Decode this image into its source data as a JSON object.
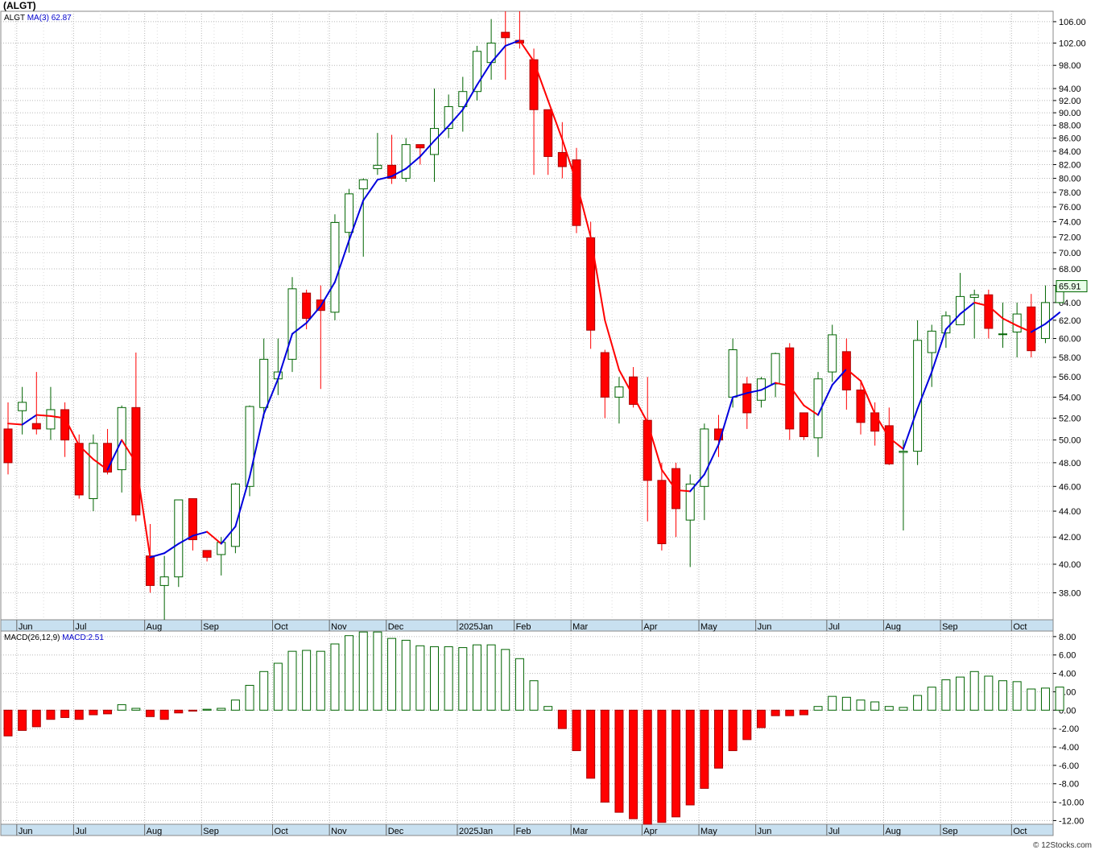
{
  "title": "(ALGT)",
  "footer": "© 12Stocks.com",
  "price_legend": {
    "symbol": "ALGT",
    "ma_label": "MA(3)",
    "ma_value": "62.87"
  },
  "macd_legend": {
    "label": "MACD(26,12,9)",
    "value": "MACD:2.51"
  },
  "last_price_label": "65.91",
  "colors": {
    "up": "#006400",
    "down": "#ff0000",
    "ma_up": "#0000dd",
    "ma_down": "#ff0000",
    "grid": "#b8b8b8",
    "axis_bar": "#c8e0f0"
  },
  "chart_data": [
    {
      "type": "candlestick",
      "scale": "log",
      "ylim": [
        36.2,
        108
      ],
      "ticks": [
        38,
        40,
        42,
        44,
        46,
        48,
        50,
        52,
        54,
        56,
        58,
        60,
        62,
        64,
        66,
        68,
        70,
        72,
        74,
        76,
        78,
        80,
        82,
        84,
        86,
        88,
        90,
        92,
        94,
        98,
        102,
        106
      ],
      "months": [
        "Jun",
        "Jul",
        "Aug",
        "Sep",
        "Oct",
        "Nov",
        "Dec",
        "2025Jan",
        "Feb",
        "Mar",
        "Apr",
        "May",
        "Jun",
        "Jul",
        "Aug",
        "Sep",
        "Oct"
      ],
      "month_start_index": [
        1,
        5,
        10,
        14,
        19,
        23,
        27,
        32,
        36,
        40,
        45,
        49,
        53,
        58,
        62,
        66,
        71
      ],
      "candles": [
        [
          51.0,
          53.5,
          47.0,
          48.0
        ],
        [
          52.7,
          55.0,
          50.5,
          53.5
        ],
        [
          51.5,
          56.5,
          50.5,
          51.0
        ],
        [
          51.0,
          55.0,
          50.0,
          52.8
        ],
        [
          52.8,
          53.5,
          48.5,
          50.0
        ],
        [
          49.7,
          50.5,
          45.0,
          45.3
        ],
        [
          45.0,
          50.5,
          44.0,
          49.7
        ],
        [
          49.7,
          51.0,
          47.0,
          47.2
        ],
        [
          47.4,
          53.2,
          45.5,
          53.0
        ],
        [
          53.0,
          58.5,
          43.2,
          43.7
        ],
        [
          40.6,
          43.0,
          38.0,
          38.5
        ],
        [
          38.5,
          40.6,
          36.2,
          39.1
        ],
        [
          39.1,
          44.9,
          38.4,
          44.9
        ],
        [
          45.0,
          45.0,
          41.0,
          41.8
        ],
        [
          41.0,
          41.0,
          40.2,
          40.5
        ],
        [
          40.7,
          42.0,
          39.2,
          41.6
        ],
        [
          41.3,
          46.3,
          40.8,
          46.2
        ],
        [
          46.0,
          53.2,
          45.2,
          53.1
        ],
        [
          53.0,
          60.0,
          52.0,
          57.8
        ],
        [
          55.8,
          60.0,
          54.2,
          56.5
        ],
        [
          57.8,
          67.0,
          56.5,
          65.6
        ],
        [
          65.1,
          65.5,
          61.0,
          62.2
        ],
        [
          64.3,
          66.0,
          54.8,
          63.1
        ],
        [
          62.9,
          75.0,
          62.0,
          73.9
        ],
        [
          72.6,
          78.5,
          70.0,
          77.8
        ],
        [
          78.5,
          80.0,
          69.5,
          79.8
        ],
        [
          81.4,
          86.8,
          80.5,
          81.9
        ],
        [
          81.9,
          86.5,
          79.2,
          80.0
        ],
        [
          80.0,
          86.0,
          79.5,
          85.0
        ],
        [
          85.0,
          85.0,
          82.0,
          84.5
        ],
        [
          83.5,
          94.0,
          79.5,
          87.5
        ],
        [
          87.5,
          93.0,
          86.0,
          91.0
        ],
        [
          91.0,
          96.0,
          87.0,
          93.5
        ],
        [
          93.5,
          101.5,
          92.0,
          100.5
        ],
        [
          98.5,
          106.5,
          95.5,
          102.0
        ],
        [
          104.0,
          108.0,
          95.5,
          103.0
        ],
        [
          102.5,
          108.0,
          101.0,
          102.0
        ],
        [
          99.0,
          101.0,
          80.5,
          90.5
        ],
        [
          90.5,
          90.5,
          80.5,
          83.2
        ],
        [
          83.8,
          88.5,
          80.0,
          81.7
        ],
        [
          82.7,
          84.5,
          72.5,
          73.5
        ],
        [
          71.9,
          74.0,
          58.9,
          60.9
        ],
        [
          58.5,
          58.8,
          52.0,
          54.0
        ],
        [
          54.0,
          56.0,
          51.5,
          55.0
        ],
        [
          56.0,
          57.0,
          53.0,
          53.3
        ],
        [
          51.8,
          56.0,
          43.2,
          46.5
        ],
        [
          46.5,
          48.0,
          41.0,
          41.5
        ],
        [
          47.5,
          48.0,
          42.0,
          44.2
        ],
        [
          43.3,
          47.0,
          39.8,
          46.2
        ],
        [
          46.0,
          51.5,
          43.3,
          51.0
        ],
        [
          51.0,
          52.3,
          48.5,
          50.0
        ],
        [
          54.0,
          60.0,
          53.0,
          58.8
        ],
        [
          55.3,
          56.0,
          51.0,
          52.5
        ],
        [
          53.7,
          56.0,
          53.0,
          55.8
        ],
        [
          55.3,
          58.5,
          54.0,
          58.4
        ],
        [
          59.0,
          59.5,
          50.0,
          51.0
        ],
        [
          52.5,
          52.5,
          50.0,
          50.3
        ],
        [
          50.2,
          56.5,
          48.5,
          55.8
        ],
        [
          56.5,
          61.5,
          55.5,
          60.4
        ],
        [
          58.6,
          60.0,
          52.8,
          54.7
        ],
        [
          54.7,
          55.5,
          50.5,
          51.6
        ],
        [
          52.5,
          53.5,
          49.5,
          50.8
        ],
        [
          51.3,
          53.0,
          47.8,
          47.9
        ],
        [
          48.9,
          50.0,
          42.5,
          49.0
        ],
        [
          49.0,
          62.0,
          47.8,
          59.8
        ],
        [
          58.5,
          61.5,
          55.0,
          60.8
        ],
        [
          60.6,
          63.0,
          59.0,
          62.5
        ],
        [
          61.5,
          67.5,
          61.5,
          64.7
        ],
        [
          64.6,
          65.5,
          60.0,
          64.9
        ],
        [
          64.9,
          65.5,
          60.0,
          61.1
        ],
        [
          60.5,
          64.0,
          59.0,
          60.5
        ],
        [
          60.7,
          64.0,
          58.0,
          62.7
        ],
        [
          63.5,
          65.0,
          58.0,
          58.7
        ],
        [
          60.0,
          66.0,
          59.5,
          64.0
        ],
        [
          64.0,
          66.5,
          63.8,
          65.91
        ]
      ],
      "ma3": [
        51.5,
        51.4,
        52.3,
        52.2,
        52.0,
        49.5,
        48.3,
        47.4,
        50.0,
        48.0,
        40.5,
        40.8,
        41.5,
        42.1,
        42.4,
        41.5,
        42.8,
        46.8,
        52.4,
        55.8,
        60.5,
        61.7,
        63.6,
        66.4,
        71.6,
        76.9,
        79.8,
        80.3,
        81.4,
        83.2,
        85.6,
        87.9,
        90.5,
        94.6,
        98.5,
        101.5,
        102.5,
        98.7,
        92.0,
        85.8,
        79.4,
        72.0,
        62.0,
        56.7,
        54.1,
        51.6,
        47.4,
        45.7,
        45.6,
        47.0,
        49.6,
        54.0,
        54.4,
        54.7,
        55.4,
        55.1,
        53.2,
        52.3,
        55.2,
        56.8,
        55.6,
        52.4,
        50.2,
        49.2,
        52.9,
        56.5,
        61.0,
        62.7,
        64.0,
        63.6,
        62.2,
        61.4,
        60.7,
        61.6,
        62.87
      ]
    },
    {
      "type": "bar",
      "label": "MACD(26,12,9)",
      "ylim": [
        -12.4,
        8.6
      ],
      "ticks": [
        8,
        6,
        4,
        2,
        0,
        -2,
        -4,
        -6,
        -8,
        -10,
        -12
      ],
      "tick_labels": [
        "8.00",
        "6.00",
        "4.00",
        "2.00",
        "0.00",
        "-2.00",
        "-4.00",
        "-6.00",
        "-8.00",
        "-10.00",
        "-12.00"
      ],
      "values": [
        -2.8,
        -2.2,
        -1.8,
        -1.0,
        -0.8,
        -1.0,
        -0.5,
        -0.4,
        0.6,
        0.2,
        -0.7,
        -1.0,
        -0.3,
        -0.1,
        0.1,
        0.2,
        1.1,
        2.7,
        4.2,
        5.1,
        6.4,
        6.5,
        6.4,
        7.2,
        8.1,
        8.5,
        8.5,
        7.8,
        7.6,
        7.0,
        6.9,
        6.9,
        6.8,
        7.1,
        7.1,
        6.6,
        5.6,
        3.2,
        0.4,
        -2.0,
        -4.4,
        -7.4,
        -10.0,
        -11.1,
        -11.8,
        -12.4,
        -12.2,
        -11.6,
        -10.3,
        -8.5,
        -6.3,
        -4.4,
        -3.2,
        -1.9,
        -0.6,
        -0.6,
        -0.5,
        0.4,
        1.5,
        1.4,
        1.1,
        0.9,
        0.4,
        0.3,
        1.6,
        2.5,
        3.3,
        3.6,
        4.2,
        3.7,
        3.2,
        3.1,
        2.3,
        2.4,
        2.51
      ]
    }
  ]
}
